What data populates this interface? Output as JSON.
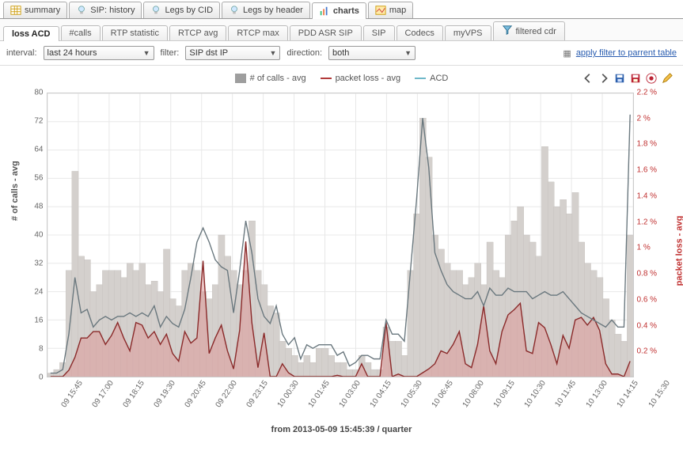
{
  "tabs": {
    "items": [
      {
        "label": "summary",
        "icon": "table"
      },
      {
        "label": "SIP: history",
        "icon": "bulb"
      },
      {
        "label": "Legs by CID",
        "icon": "bulb"
      },
      {
        "label": "Legs by header",
        "icon": "bulb"
      },
      {
        "label": "charts",
        "icon": "chart"
      },
      {
        "label": "map",
        "icon": "map"
      }
    ],
    "active": 4
  },
  "subtabs": {
    "items": [
      "loss ACD",
      "#calls",
      "RTP statistic",
      "RTCP avg",
      "RTCP max",
      "PDD ASR SIP",
      "SIP",
      "Codecs",
      "myVPS",
      "filtered cdr"
    ],
    "active": 0,
    "filteredHasIcon": true
  },
  "filterbar": {
    "intervalLabel": "interval:",
    "intervalValue": "last 24 hours",
    "filterLabel": "filter:",
    "filterValue": "SIP dst IP",
    "directionLabel": "direction:",
    "directionValue": "both",
    "applyLabel": "apply filter to parrent table"
  },
  "toolbar": {
    "icons": [
      "nav-left",
      "nav-right",
      "save-blue",
      "save-red",
      "help-red",
      "edit-pencil"
    ]
  },
  "legend": {
    "items": [
      {
        "label": "# of calls - avg",
        "color": "#9e9e9e",
        "type": "box"
      },
      {
        "label": "packet loss - avg",
        "color": "#b23a3a",
        "type": "line"
      },
      {
        "label": "ACD",
        "color": "#6fb8c9",
        "type": "line"
      }
    ]
  },
  "chart": {
    "xTitle": "from 2013-05-09 15:45:39 / quarter",
    "yLeft": {
      "title": "# of calls - avg",
      "min": 0,
      "max": 80,
      "ticks": [
        0,
        8,
        16,
        24,
        32,
        40,
        48,
        56,
        64,
        72,
        80
      ]
    },
    "yRight": {
      "title": "packet loss - avg",
      "min": 0,
      "max": 2.2,
      "ticks": [
        0,
        0.2,
        0.4,
        0.6,
        0.8,
        1.0,
        1.2,
        1.4,
        1.6,
        1.8,
        2.0,
        2.2
      ],
      "suffix": " %"
    },
    "xTicks": [
      "09 15:45",
      "09 17:00",
      "09 18:15",
      "09 19:30",
      "09 20:45",
      "09 22:00",
      "09 23:15",
      "10 00:30",
      "10 01:45",
      "10 03:00",
      "10 04:15",
      "10 05:30",
      "10 06:45",
      "10 08:00",
      "10 09:15",
      "10 10:30",
      "10 11:45",
      "10 13:00",
      "10 14:15",
      "10 15:30"
    ],
    "colors": {
      "bars": "#d4d0cd",
      "barsStroke": "#bdb8b4",
      "lossFill": "#d99",
      "lossStroke": "#8a2a2a",
      "acd": "#6a6f73",
      "acdHighlight": "#5fa8bb",
      "grid": "#e8e8e8"
    },
    "bars": [
      1,
      2,
      4,
      30,
      58,
      34,
      33,
      24,
      26,
      30,
      30,
      30,
      28,
      32,
      30,
      32,
      26,
      27,
      24,
      36,
      22,
      20,
      30,
      32,
      30,
      24,
      22,
      26,
      40,
      34,
      30,
      26,
      30,
      44,
      30,
      26,
      20,
      18,
      10,
      8,
      6,
      4,
      6,
      4,
      8,
      8,
      6,
      4,
      4,
      2,
      2,
      6,
      4,
      2,
      2,
      14,
      10,
      10,
      6,
      30,
      46,
      73,
      62,
      40,
      36,
      32,
      30,
      30,
      26,
      28,
      32,
      26,
      38,
      30,
      28,
      40,
      44,
      48,
      40,
      38,
      34,
      65,
      55,
      48,
      50,
      46,
      52,
      38,
      32,
      30,
      28,
      22,
      16,
      12,
      10,
      40
    ],
    "loss": [
      0,
      0,
      0,
      0.05,
      0.15,
      0.3,
      0.3,
      0.35,
      0.35,
      0.25,
      0.32,
      0.42,
      0.3,
      0.2,
      0.42,
      0.4,
      0.3,
      0.35,
      0.25,
      0.33,
      0.18,
      0.12,
      0.35,
      0.26,
      0.3,
      0.9,
      0.18,
      0.3,
      0.4,
      0.2,
      0.06,
      0.36,
      1.05,
      0.42,
      0.07,
      0.34,
      0.0,
      0.0,
      0.1,
      0.03,
      0.0,
      0.0,
      0.0,
      0.0,
      0.0,
      0.0,
      0.0,
      0.01,
      0.0,
      0.0,
      0.0,
      0.1,
      0.0,
      0.0,
      0.0,
      0.42,
      0.0,
      0.02,
      0.0,
      0.0,
      0.0,
      0.03,
      0.06,
      0.1,
      0.2,
      0.18,
      0.25,
      0.35,
      0.1,
      0.07,
      0.25,
      0.55,
      0.2,
      0.1,
      0.35,
      0.48,
      0.52,
      0.57,
      0.2,
      0.18,
      0.42,
      0.38,
      0.25,
      0.1,
      0.32,
      0.22,
      0.44,
      0.46,
      0.4,
      0.46,
      0.36,
      0.1,
      0.02,
      0.02,
      0.0,
      0.12
    ],
    "acd": [
      1,
      1,
      2,
      12,
      28,
      18,
      19,
      14,
      16,
      17,
      16,
      17,
      17,
      18,
      17,
      18,
      17,
      20,
      14,
      17,
      15,
      14,
      19,
      28,
      38,
      42,
      38,
      33,
      31,
      30,
      18,
      30,
      44,
      35,
      22,
      17,
      15,
      20,
      12,
      9,
      11,
      5,
      9,
      8,
      9,
      9,
      9,
      6,
      7,
      3,
      4,
      6,
      6,
      5,
      5,
      16,
      12,
      12,
      10,
      30,
      50,
      73,
      59,
      35,
      30,
      26,
      24,
      23,
      22,
      22,
      24,
      20,
      25,
      23,
      23,
      25,
      24,
      24,
      24,
      22,
      23,
      24,
      23,
      23,
      24,
      22,
      20,
      18,
      17,
      16,
      15,
      14,
      16,
      14,
      14,
      74
    ]
  }
}
